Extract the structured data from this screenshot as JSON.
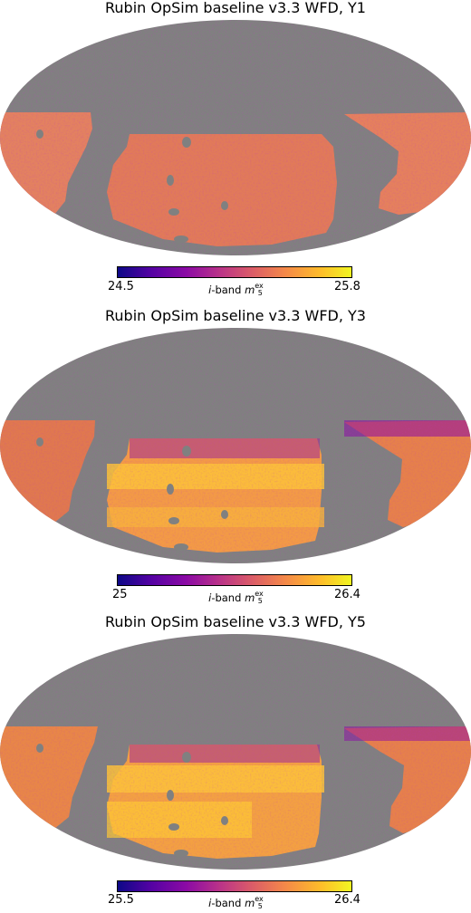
{
  "colors": {
    "background_sky": "#808080",
    "colormap": [
      "#0d0887",
      "#5402a3",
      "#8b0aa5",
      "#b93289",
      "#db5c68",
      "#f48849",
      "#febc2a",
      "#f0f921"
    ],
    "dominant_fill": "#f28a3e"
  },
  "panels": [
    {
      "title": "Rubin OpSim baseline v3.3 WFD, Y1",
      "colorbar": {
        "min": "24.5",
        "max": "25.8",
        "label_prefix": "i",
        "label_mid": "-band ",
        "label_var": "m",
        "label_sup": "ex",
        "label_sub": "5"
      }
    },
    {
      "title": "Rubin OpSim baseline v3.3 WFD, Y3",
      "colorbar": {
        "min": "25",
        "max": "26.4",
        "label_prefix": "i",
        "label_mid": "-band ",
        "label_var": "m",
        "label_sup": "ex",
        "label_sub": "5"
      }
    },
    {
      "title": "Rubin OpSim baseline v3.3 WFD, Y5",
      "colorbar": {
        "min": "25.5",
        "max": "26.4",
        "label_prefix": "i",
        "label_mid": "-band ",
        "label_var": "m",
        "label_sup": "ex",
        "label_sub": "5"
      }
    }
  ]
}
